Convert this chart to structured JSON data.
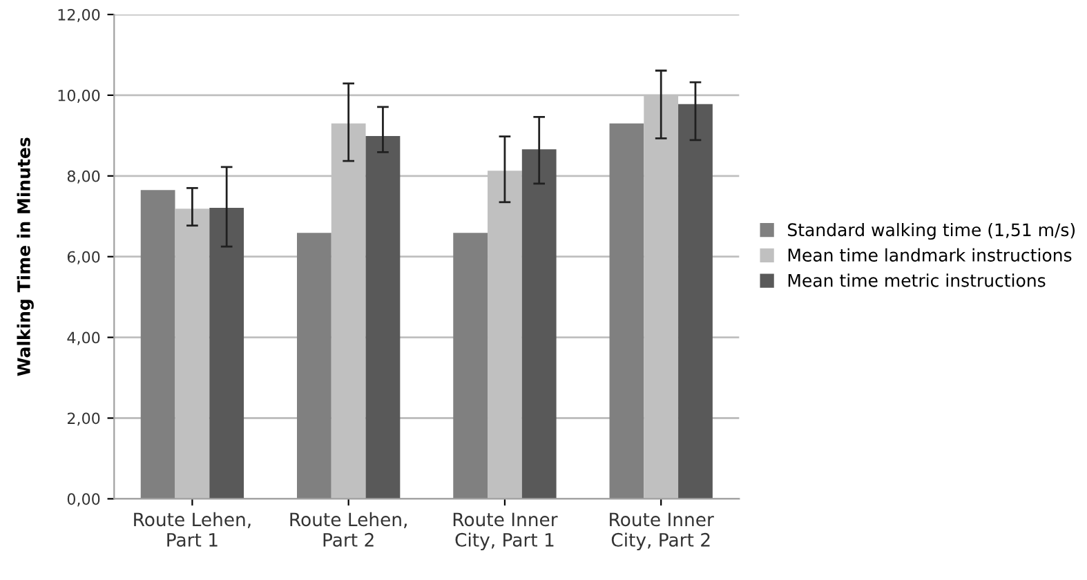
{
  "chart_data": {
    "type": "bar",
    "ylabel": "Walking Time in Minutes",
    "categories": [
      "Route Lehen,\nPart 1",
      "Route Lehen,\nPart 2",
      "Route Inner\nCity, Part 1",
      "Route Inner\nCity, Part 2"
    ],
    "series": [
      {
        "name": "Standard walking time (1,51 m/s)",
        "color": "#808080",
        "values": [
          7.65,
          6.59,
          6.59,
          9.3
        ]
      },
      {
        "name": "Mean time landmark instructions",
        "color": "#c0c0c0",
        "values": [
          7.19,
          9.3,
          8.13,
          9.98
        ],
        "errors": [
          [
            6.77,
            7.7
          ],
          [
            8.37,
            10.29
          ],
          [
            7.35,
            8.98
          ],
          [
            8.93,
            10.61
          ]
        ]
      },
      {
        "name": "Mean time metric instructions",
        "color": "#595959",
        "values": [
          7.21,
          8.99,
          8.66,
          9.78
        ],
        "errors": [
          [
            6.25,
            8.22
          ],
          [
            8.59,
            9.71
          ],
          [
            7.81,
            9.46
          ],
          [
            8.89,
            10.32
          ]
        ]
      }
    ],
    "ylim": [
      0,
      12
    ],
    "yticks": [
      {
        "value": 0,
        "label": "0,00"
      },
      {
        "value": 2,
        "label": "2,00"
      },
      {
        "value": 4,
        "label": "4,00"
      },
      {
        "value": 6,
        "label": "6,00"
      },
      {
        "value": 8,
        "label": "8,00"
      },
      {
        "value": 10,
        "label": "10,00"
      },
      {
        "value": 12,
        "label": "12,00"
      }
    ],
    "grid": "y",
    "legend": "right"
  }
}
